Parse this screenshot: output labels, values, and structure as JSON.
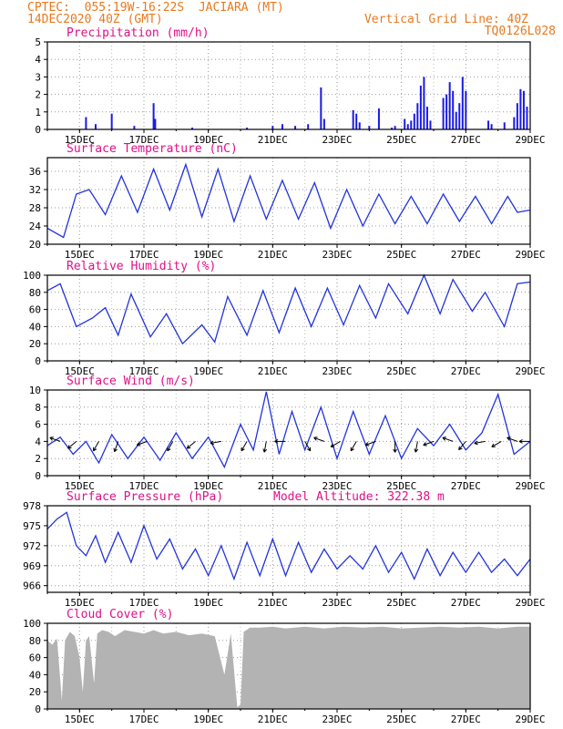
{
  "header": {
    "left_line1": "CPTEC:  055:19W-16:22S  JACIARA (MT)",
    "left_line2": "14DEC2020 40Z (GMT)",
    "right_line1": "Vertical Grid Line: 40Z",
    "right_line2": "TQ0126L028"
  },
  "colors": {
    "header": "#e8791e",
    "title": "#e0108a",
    "series": "#2233dd",
    "cloud": "#b3b3b3",
    "bars": "#1a1ae6"
  },
  "x_axis": {
    "start": "14DEC2020",
    "end": "29DEC2020",
    "tick_labels": [
      "15DEC",
      "17DEC",
      "19DEC",
      "21DEC",
      "23DEC",
      "25DEC",
      "27DEC",
      "29DEC"
    ],
    "tick_days": [
      15,
      17,
      19,
      21,
      23,
      25,
      27,
      29
    ]
  },
  "chart_data": [
    {
      "type": "bar",
      "title": "Precipitation (mm/h)",
      "ylim": [
        0,
        5
      ],
      "yticks": [
        0,
        1,
        2,
        3,
        4,
        5
      ],
      "x": [
        15.2,
        15.5,
        16.0,
        16.7,
        17.3,
        17.35,
        18.5,
        20.2,
        21.0,
        21.3,
        21.7,
        22.1,
        22.5,
        22.6,
        23.5,
        23.6,
        23.7,
        24.0,
        24.3,
        24.7,
        24.8,
        25.1,
        25.2,
        25.3,
        25.4,
        25.5,
        25.6,
        25.7,
        25.8,
        25.9,
        26.3,
        26.4,
        26.5,
        26.6,
        26.7,
        26.8,
        26.9,
        27.0,
        27.7,
        27.8,
        28.2,
        28.5,
        28.6,
        28.7,
        28.8,
        28.9
      ],
      "values": [
        0.7,
        0.3,
        0.9,
        0.2,
        1.5,
        0.6,
        0.1,
        0.1,
        0.2,
        0.3,
        0.2,
        0.3,
        2.4,
        0.6,
        1.1,
        0.9,
        0.4,
        0.2,
        1.2,
        0.1,
        0.2,
        0.6,
        0.3,
        0.5,
        0.9,
        1.5,
        2.5,
        3.0,
        1.3,
        0.5,
        1.8,
        2.0,
        2.7,
        2.2,
        1.0,
        1.5,
        3.0,
        2.2,
        0.5,
        0.3,
        0.4,
        0.7,
        1.5,
        2.3,
        2.2,
        1.3
      ]
    },
    {
      "type": "line",
      "title": "Surface Temperature (nC)",
      "ylim": [
        20,
        39
      ],
      "yticks": [
        20,
        24,
        28,
        32,
        36
      ],
      "x": [
        14.0,
        14.5,
        14.9,
        15.3,
        15.8,
        16.3,
        16.8,
        17.3,
        17.8,
        18.3,
        18.8,
        19.3,
        19.8,
        20.3,
        20.8,
        21.3,
        21.8,
        22.3,
        22.8,
        23.3,
        23.8,
        24.3,
        24.8,
        25.3,
        25.8,
        26.3,
        26.8,
        27.3,
        27.8,
        28.3,
        28.6,
        29.0
      ],
      "values": [
        23.5,
        21.5,
        31.0,
        32.0,
        26.5,
        35.0,
        27.0,
        36.5,
        27.5,
        37.5,
        26.0,
        36.5,
        25.0,
        35.0,
        25.5,
        34.0,
        25.5,
        33.5,
        23.5,
        32.0,
        24.0,
        31.0,
        24.5,
        30.5,
        24.5,
        31.0,
        25.0,
        30.5,
        24.5,
        30.5,
        27.0,
        27.5
      ]
    },
    {
      "type": "line",
      "title": "Relative Humidity (%)",
      "ylim": [
        0,
        100
      ],
      "yticks": [
        0,
        20,
        40,
        60,
        80,
        100
      ],
      "x": [
        14.0,
        14.4,
        14.9,
        15.4,
        15.8,
        16.2,
        16.6,
        17.2,
        17.7,
        18.2,
        18.8,
        19.2,
        19.6,
        20.2,
        20.7,
        21.2,
        21.7,
        22.2,
        22.7,
        23.2,
        23.7,
        24.2,
        24.6,
        25.2,
        25.7,
        26.2,
        26.6,
        27.2,
        27.6,
        28.2,
        28.6,
        29.0
      ],
      "values": [
        82,
        90,
        40,
        50,
        62,
        30,
        78,
        28,
        55,
        20,
        42,
        22,
        75,
        30,
        82,
        33,
        85,
        40,
        85,
        42,
        88,
        50,
        90,
        55,
        100,
        55,
        95,
        58,
        80,
        40,
        90,
        92
      ]
    },
    {
      "type": "line",
      "title": "Surface Wind (m/s)",
      "ylim": [
        0,
        10
      ],
      "yticks": [
        0,
        2,
        4,
        6,
        8,
        10
      ],
      "x": [
        14.0,
        14.4,
        14.8,
        15.2,
        15.6,
        16.0,
        16.5,
        17.0,
        17.5,
        18.0,
        18.5,
        19.0,
        19.5,
        20.0,
        20.4,
        20.8,
        21.2,
        21.6,
        22.0,
        22.5,
        23.0,
        23.5,
        24.0,
        24.5,
        25.0,
        25.5,
        26.0,
        26.5,
        27.0,
        27.5,
        28.0,
        28.5,
        29.0
      ],
      "values": [
        3.5,
        4.5,
        2.5,
        4.0,
        1.5,
        4.8,
        2.0,
        4.5,
        1.8,
        5.0,
        2.0,
        4.5,
        1.0,
        6.0,
        3.0,
        9.8,
        2.5,
        7.5,
        3.0,
        8.0,
        2.0,
        7.5,
        2.5,
        7.0,
        2.0,
        5.5,
        3.5,
        6.0,
        3.0,
        5.0,
        9.5,
        2.5,
        4.0
      ],
      "arrows_x": [
        14.4,
        14.9,
        15.6,
        16.2,
        17.1,
        17.9,
        18.6,
        19.4,
        20.2,
        20.8,
        21.4,
        22.0,
        22.6,
        23.1,
        23.6,
        24.2,
        24.8,
        25.5,
        26.0,
        26.6,
        27.0,
        27.6,
        28.1,
        28.6,
        29.0
      ],
      "arrows_dir": [
        200,
        140,
        120,
        110,
        160,
        120,
        140,
        170,
        120,
        100,
        180,
        60,
        200,
        150,
        120,
        160,
        90,
        100,
        160,
        200,
        130,
        170,
        150,
        200,
        180
      ]
    },
    {
      "type": "line",
      "title": "Surface Pressure (hPa)",
      "annotation": "Model Altitude: 322.38 m",
      "ylim": [
        965,
        978
      ],
      "yticks": [
        966,
        969,
        972,
        975,
        978
      ],
      "x": [
        14.0,
        14.3,
        14.6,
        14.9,
        15.2,
        15.5,
        15.8,
        16.2,
        16.6,
        17.0,
        17.4,
        17.8,
        18.2,
        18.6,
        19.0,
        19.4,
        19.8,
        20.2,
        20.6,
        21.0,
        21.4,
        21.8,
        22.2,
        22.6,
        23.0,
        23.4,
        23.8,
        24.2,
        24.6,
        25.0,
        25.4,
        25.8,
        26.2,
        26.6,
        27.0,
        27.4,
        27.8,
        28.2,
        28.6,
        29.0
      ],
      "values": [
        974.5,
        976.0,
        977.0,
        972.0,
        970.5,
        973.5,
        969.5,
        974.0,
        969.5,
        975.0,
        970.0,
        973.0,
        968.5,
        971.5,
        967.5,
        972.0,
        967.0,
        972.5,
        967.5,
        973.0,
        967.5,
        972.5,
        968.0,
        971.5,
        968.5,
        970.5,
        968.5,
        972.0,
        968.0,
        971.0,
        967.0,
        971.5,
        967.5,
        971.0,
        968.0,
        971.0,
        968.0,
        970.0,
        967.5,
        970.0
      ]
    },
    {
      "type": "area",
      "title": "Cloud Cover (%)",
      "ylim": [
        0,
        100
      ],
      "yticks": [
        0,
        20,
        40,
        60,
        80,
        100
      ],
      "x": [
        14.0,
        14.15,
        14.3,
        14.45,
        14.55,
        14.7,
        14.85,
        15.0,
        15.1,
        15.2,
        15.3,
        15.45,
        15.55,
        15.7,
        15.9,
        16.1,
        16.4,
        16.7,
        17.0,
        17.3,
        17.6,
        18.0,
        18.4,
        18.8,
        19.2,
        19.5,
        19.7,
        19.9,
        20.0,
        20.1,
        20.3,
        20.6,
        21.0,
        21.4,
        22.0,
        22.6,
        23.2,
        23.8,
        24.4,
        25.0,
        25.6,
        26.2,
        26.8,
        27.4,
        28.0,
        28.6,
        29.0
      ],
      "values": [
        80,
        75,
        82,
        10,
        80,
        90,
        85,
        60,
        20,
        80,
        85,
        30,
        88,
        92,
        90,
        85,
        92,
        90,
        88,
        92,
        88,
        90,
        86,
        88,
        85,
        40,
        88,
        2,
        5,
        90,
        95,
        95,
        96,
        94,
        96,
        94,
        96,
        95,
        96,
        94,
        95,
        96,
        95,
        96,
        94,
        96,
        96
      ]
    }
  ]
}
